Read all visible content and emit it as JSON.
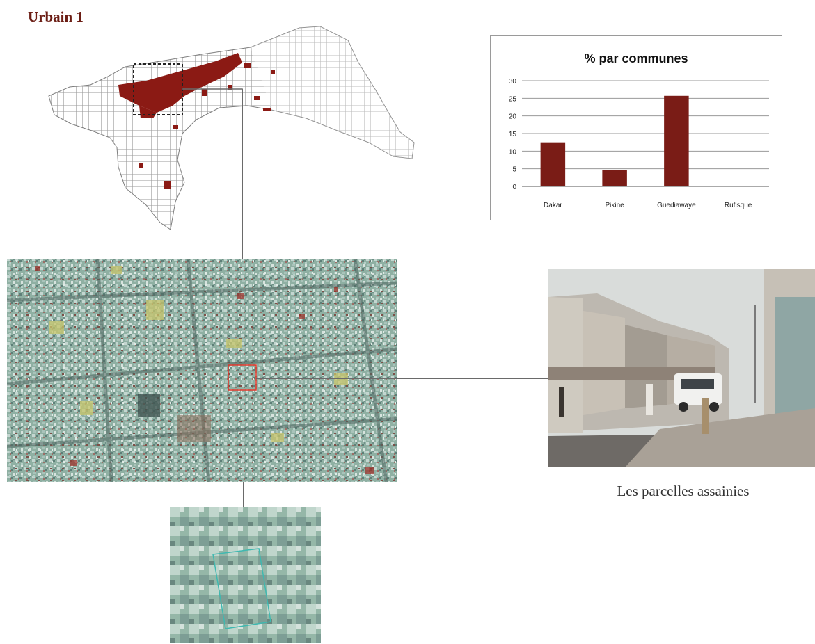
{
  "header": {
    "title": "Urbain 1"
  },
  "photo": {
    "caption": "Les parcelles assainies"
  },
  "colors": {
    "bar": "#7a1c16",
    "map_highlight": "#8b1a14",
    "title": "#6b1d14",
    "satellite_base": "#8fb4a6"
  },
  "icons": {
    "zoom_frame": "dashed-rectangle-icon"
  },
  "chart_data": {
    "type": "bar",
    "title": "% par communes",
    "categories": [
      "Dakar",
      "Pikine",
      "Guediawaye",
      "Rufisque"
    ],
    "values": [
      12.5,
      4.7,
      25.7,
      0
    ],
    "ylim": [
      0,
      30
    ],
    "yticks": [
      "0",
      "5",
      "10",
      "15",
      "20",
      "25",
      "30"
    ],
    "grid": true,
    "xlabel": "",
    "ylabel": ""
  }
}
